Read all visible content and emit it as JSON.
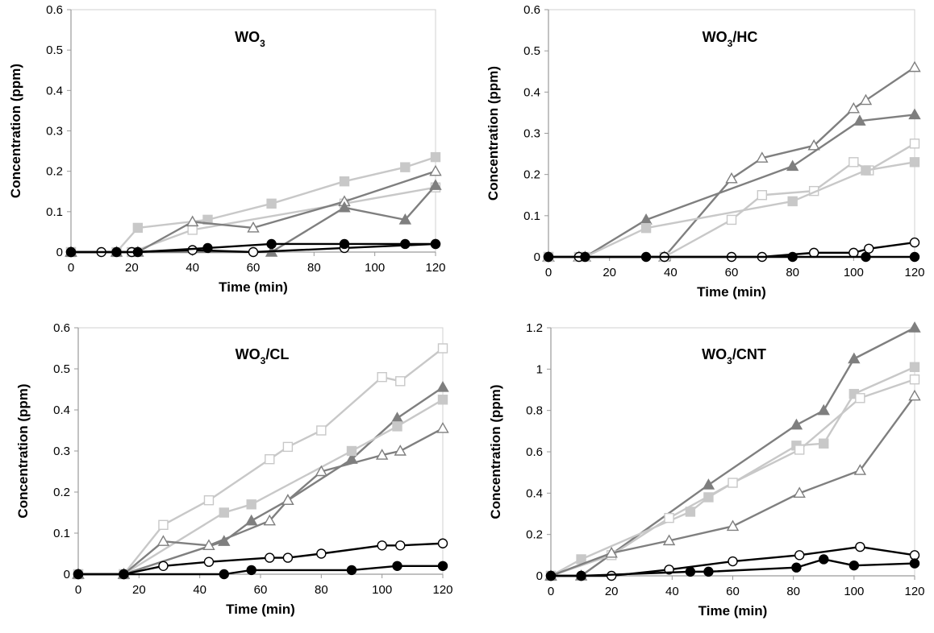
{
  "chart_data": [
    {
      "type": "line",
      "title_parts": [
        "WO",
        "3",
        ""
      ],
      "xlabel": "Time (min)",
      "ylabel": "Concentration (ppm)",
      "xlim": [
        0,
        120
      ],
      "ylim": [
        0,
        0.6
      ],
      "xticks": [
        0,
        20,
        40,
        60,
        80,
        100,
        120
      ],
      "xtick_labels": [
        "0",
        "20",
        "40",
        "60",
        "80",
        "100",
        "120"
      ],
      "yticks": [
        0,
        0.1,
        0.2,
        0.3,
        0.4,
        0.5,
        0.6
      ],
      "ytick_labels": [
        "0",
        "0.1",
        "0.2",
        "0.3",
        "0.4",
        "0.5",
        "0.6"
      ],
      "series": [
        {
          "name": "light-square-filled",
          "color": "#c8c8c8",
          "marker": "square",
          "fill": true,
          "x": [
            0,
            15,
            22,
            45,
            66,
            90,
            110,
            120
          ],
          "y": [
            0,
            0,
            0.06,
            0.08,
            0.12,
            0.175,
            0.21,
            0.235
          ]
        },
        {
          "name": "light-square-open",
          "color": "#c8c8c8",
          "marker": "square",
          "fill": false,
          "x": [
            0,
            20,
            40,
            90,
            120
          ],
          "y": [
            0,
            0,
            0.055,
            0.12,
            0.16
          ]
        },
        {
          "name": "dark-triangle-open",
          "color": "#7f7f7f",
          "marker": "triangle",
          "fill": false,
          "x": [
            0,
            22,
            40,
            60,
            90,
            120
          ],
          "y": [
            0,
            0,
            0.075,
            0.06,
            0.125,
            0.2
          ]
        },
        {
          "name": "dark-triangle-filled",
          "color": "#7f7f7f",
          "marker": "triangle",
          "fill": true,
          "x": [
            0,
            15,
            66,
            90,
            110,
            120
          ],
          "y": [
            0,
            0,
            0,
            0.11,
            0.08,
            0.165
          ]
        },
        {
          "name": "black-circle-open",
          "color": "#000000",
          "marker": "circle",
          "fill": false,
          "x": [
            0,
            10,
            20,
            40,
            60,
            90,
            120
          ],
          "y": [
            0,
            0,
            0,
            0.005,
            0.0,
            0.01,
            0.02
          ]
        },
        {
          "name": "black-circle-filled",
          "color": "#000000",
          "marker": "circle",
          "fill": true,
          "x": [
            0,
            15,
            22,
            45,
            66,
            90,
            110,
            120
          ],
          "y": [
            0,
            0,
            0,
            0.01,
            0.02,
            0.02,
            0.02,
            0.02
          ]
        }
      ]
    },
    {
      "type": "line",
      "title_parts": [
        "WO",
        "3",
        "/HC"
      ],
      "xlabel": "Time (min)",
      "ylabel": "Concentration (ppm)",
      "xlim": [
        0,
        120
      ],
      "ylim": [
        0,
        0.6
      ],
      "xticks": [
        0,
        20,
        40,
        60,
        80,
        100,
        120
      ],
      "xtick_labels": [
        "0",
        "20",
        "40",
        "60",
        "80",
        "100",
        "120"
      ],
      "yticks": [
        0,
        0.1,
        0.2,
        0.3,
        0.4,
        0.5,
        0.6
      ],
      "ytick_labels": [
        "0",
        "0.1",
        "0.2",
        "0.3",
        "0.4",
        "0.5",
        "0.6"
      ],
      "series": [
        {
          "name": "dark-triangle-open",
          "color": "#7f7f7f",
          "marker": "triangle",
          "fill": false,
          "x": [
            0,
            10,
            38,
            60,
            70,
            87,
            100,
            104,
            120
          ],
          "y": [
            0,
            0,
            0,
            0.19,
            0.24,
            0.27,
            0.36,
            0.38,
            0.46
          ]
        },
        {
          "name": "dark-triangle-filled",
          "color": "#7f7f7f",
          "marker": "triangle",
          "fill": true,
          "x": [
            0,
            12,
            32,
            80,
            102,
            120
          ],
          "y": [
            0,
            0,
            0.09,
            0.22,
            0.33,
            0.345
          ]
        },
        {
          "name": "light-square-open",
          "color": "#c8c8c8",
          "marker": "square",
          "fill": false,
          "x": [
            0,
            10,
            38,
            60,
            70,
            87,
            100,
            105,
            120
          ],
          "y": [
            0,
            0,
            0,
            0.09,
            0.15,
            0.16,
            0.23,
            0.21,
            0.275
          ]
        },
        {
          "name": "light-square-filled",
          "color": "#c8c8c8",
          "marker": "square",
          "fill": true,
          "x": [
            0,
            12,
            32,
            80,
            104,
            120
          ],
          "y": [
            0,
            0,
            0.07,
            0.135,
            0.21,
            0.23
          ]
        },
        {
          "name": "black-circle-open",
          "color": "#000000",
          "marker": "circle",
          "fill": false,
          "x": [
            0,
            10,
            38,
            60,
            70,
            87,
            100,
            105,
            120
          ],
          "y": [
            0,
            0,
            0,
            0,
            0,
            0.01,
            0.01,
            0.02,
            0.035
          ]
        },
        {
          "name": "black-circle-filled",
          "color": "#000000",
          "marker": "circle",
          "fill": true,
          "x": [
            0,
            12,
            32,
            80,
            104,
            120
          ],
          "y": [
            0,
            0,
            0,
            0,
            0,
            0
          ]
        }
      ]
    },
    {
      "type": "line",
      "title_parts": [
        "WO",
        "3",
        "/CL"
      ],
      "xlabel": "Time (min)",
      "ylabel": "Concentration (ppm)",
      "xlim": [
        0,
        120
      ],
      "ylim": [
        0,
        0.6
      ],
      "xticks": [
        0,
        20,
        40,
        60,
        80,
        100,
        120
      ],
      "xtick_labels": [
        "0",
        "20",
        "40",
        "60",
        "80",
        "100",
        "120"
      ],
      "yticks": [
        0,
        0.1,
        0.2,
        0.3,
        0.4,
        0.5,
        0.6
      ],
      "ytick_labels": [
        "0",
        "0.1",
        "0.2",
        "0.3",
        "0.4",
        "0.5",
        "0.6"
      ],
      "series": [
        {
          "name": "light-square-open",
          "color": "#c8c8c8",
          "marker": "square",
          "fill": false,
          "x": [
            0,
            15,
            28,
            43,
            63,
            69,
            80,
            100,
            106,
            120
          ],
          "y": [
            0,
            0,
            0.12,
            0.18,
            0.28,
            0.31,
            0.35,
            0.48,
            0.47,
            0.55
          ]
        },
        {
          "name": "dark-triangle-filled",
          "color": "#7f7f7f",
          "marker": "triangle",
          "fill": true,
          "x": [
            0,
            15,
            48,
            57,
            69,
            90,
            105,
            120
          ],
          "y": [
            0,
            0,
            0.08,
            0.13,
            0.18,
            0.28,
            0.38,
            0.455
          ]
        },
        {
          "name": "light-square-filled",
          "color": "#c8c8c8",
          "marker": "square",
          "fill": true,
          "x": [
            0,
            15,
            48,
            57,
            90,
            105,
            120
          ],
          "y": [
            0,
            0,
            0.15,
            0.17,
            0.3,
            0.36,
            0.425
          ]
        },
        {
          "name": "dark-triangle-open",
          "color": "#7f7f7f",
          "marker": "triangle",
          "fill": false,
          "x": [
            0,
            15,
            28,
            43,
            63,
            69,
            80,
            100,
            106,
            120
          ],
          "y": [
            0,
            0,
            0.08,
            0.07,
            0.13,
            0.18,
            0.25,
            0.29,
            0.3,
            0.355
          ]
        },
        {
          "name": "black-circle-open",
          "color": "#000000",
          "marker": "circle",
          "fill": false,
          "x": [
            0,
            15,
            28,
            43,
            63,
            69,
            80,
            100,
            106,
            120
          ],
          "y": [
            0,
            0,
            0.02,
            0.03,
            0.04,
            0.04,
            0.05,
            0.07,
            0.07,
            0.075
          ]
        },
        {
          "name": "black-circle-filled",
          "color": "#000000",
          "marker": "circle",
          "fill": true,
          "x": [
            0,
            15,
            48,
            57,
            90,
            105,
            120
          ],
          "y": [
            0,
            0,
            0,
            0.01,
            0.01,
            0.02,
            0.02
          ]
        }
      ]
    },
    {
      "type": "line",
      "title_parts": [
        "WO",
        "3",
        "/CNT"
      ],
      "xlabel": "Time (min)",
      "ylabel": "Concentration (ppm)",
      "xlim": [
        0,
        120
      ],
      "ylim": [
        0,
        1.2
      ],
      "xticks": [
        0,
        20,
        40,
        60,
        80,
        100,
        120
      ],
      "xtick_labels": [
        "0",
        "20",
        "40",
        "60",
        "80",
        "100",
        "120"
      ],
      "yticks": [
        0,
        0.2,
        0.4,
        0.6,
        0.8,
        1.0,
        1.2
      ],
      "ytick_labels": [
        "0",
        "0.2",
        "0.4",
        "0.6",
        "0.8",
        "1",
        "1.2"
      ],
      "series": [
        {
          "name": "dark-triangle-filled",
          "color": "#7f7f7f",
          "marker": "triangle",
          "fill": true,
          "x": [
            0,
            10,
            52,
            81,
            90,
            100,
            120
          ],
          "y": [
            0,
            0,
            0.44,
            0.73,
            0.8,
            1.05,
            1.2
          ]
        },
        {
          "name": "light-square-filled",
          "color": "#c8c8c8",
          "marker": "square",
          "fill": true,
          "x": [
            0,
            10,
            46,
            52,
            81,
            90,
            100,
            120
          ],
          "y": [
            0,
            0.08,
            0.31,
            0.38,
            0.63,
            0.64,
            0.88,
            1.01
          ]
        },
        {
          "name": "light-square-open",
          "color": "#c8c8c8",
          "marker": "square",
          "fill": false,
          "x": [
            0,
            20,
            39,
            60,
            82,
            102,
            120
          ],
          "y": [
            0,
            0.1,
            0.28,
            0.45,
            0.61,
            0.86,
            0.95
          ]
        },
        {
          "name": "dark-triangle-open",
          "color": "#7f7f7f",
          "marker": "triangle",
          "fill": false,
          "x": [
            0,
            20,
            39,
            60,
            82,
            102,
            120
          ],
          "y": [
            0,
            0.11,
            0.17,
            0.24,
            0.4,
            0.51,
            0.87
          ]
        },
        {
          "name": "black-circle-open",
          "color": "#000000",
          "marker": "circle",
          "fill": false,
          "x": [
            0,
            10,
            20,
            39,
            60,
            82,
            102,
            120
          ],
          "y": [
            0,
            0,
            0,
            0.03,
            0.07,
            0.1,
            0.14,
            0.1
          ]
        },
        {
          "name": "black-circle-filled",
          "color": "#000000",
          "marker": "circle",
          "fill": true,
          "x": [
            0,
            10,
            46,
            52,
            81,
            90,
            100,
            120
          ],
          "y": [
            0,
            0,
            0.02,
            0.02,
            0.04,
            0.08,
            0.05,
            0.06
          ]
        }
      ]
    }
  ]
}
